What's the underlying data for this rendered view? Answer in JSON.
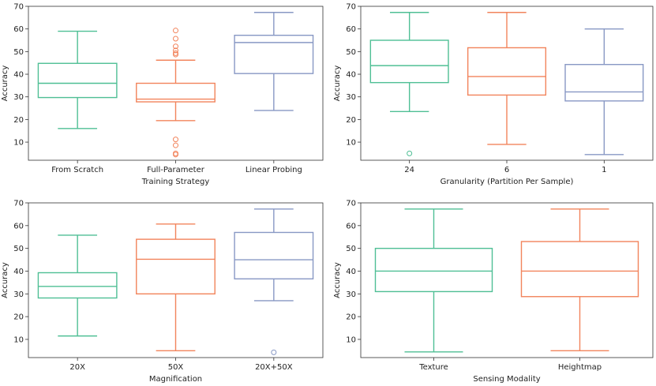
{
  "colors": {
    "series1": "#4fbf95",
    "series2": "#f2845c",
    "series3": "#8898c4"
  },
  "chart_data": [
    {
      "type": "box",
      "xlabel": "Training Strategy",
      "ylabel": "Accuracy",
      "ylim": [
        2,
        70
      ],
      "yticks": [
        10,
        20,
        30,
        40,
        50,
        60,
        70
      ],
      "boxes": [
        {
          "label": "From Scratch",
          "whislo": 16,
          "q1": 29.7,
          "med": 36,
          "q3": 44.8,
          "whishi": 59,
          "fliers": []
        },
        {
          "label": "Full-Parameter",
          "whislo": 19.5,
          "q1": 27.8,
          "med": 29,
          "q3": 36,
          "whishi": 46.2,
          "fliers": [
            59.3,
            55.7,
            52.3,
            50.5,
            49.3,
            48.7,
            11.2,
            8.6,
            5,
            4.5
          ]
        },
        {
          "label": "Linear Probing",
          "whislo": 24,
          "q1": 40.3,
          "med": 54,
          "q3": 57.2,
          "whishi": 67.3,
          "fliers": []
        }
      ]
    },
    {
      "type": "box",
      "xlabel": "Granularity (Partition Per Sample)",
      "ylabel": "Accuracy",
      "ylim": [
        2,
        70
      ],
      "yticks": [
        10,
        20,
        30,
        40,
        50,
        60,
        70
      ],
      "boxes": [
        {
          "label": "24",
          "whislo": 23.5,
          "q1": 36.3,
          "med": 43.8,
          "q3": 55,
          "whishi": 67.3,
          "fliers": [
            5
          ]
        },
        {
          "label": "6",
          "whislo": 9,
          "q1": 30.8,
          "med": 39,
          "q3": 51.7,
          "whishi": 67.3,
          "fliers": []
        },
        {
          "label": "1",
          "whislo": 4.5,
          "q1": 28.2,
          "med": 32.2,
          "q3": 44.3,
          "whishi": 60,
          "fliers": []
        }
      ]
    },
    {
      "type": "box",
      "xlabel": "Magnification",
      "ylabel": "Accuracy",
      "ylim": [
        2,
        70
      ],
      "yticks": [
        10,
        20,
        30,
        40,
        50,
        60,
        70
      ],
      "boxes": [
        {
          "label": "20X",
          "whislo": 11.5,
          "q1": 28.2,
          "med": 33.3,
          "q3": 39.3,
          "whishi": 55.8,
          "fliers": []
        },
        {
          "label": "50X",
          "whislo": 5,
          "q1": 30,
          "med": 45.2,
          "q3": 54,
          "whishi": 60.7,
          "fliers": []
        },
        {
          "label": "20X+50X",
          "whislo": 27,
          "q1": 36.6,
          "med": 45,
          "q3": 57,
          "whishi": 67.3,
          "fliers": [
            4.3
          ]
        }
      ]
    },
    {
      "type": "box",
      "xlabel": "Sensing Modality",
      "ylabel": "Accuracy",
      "ylim": [
        2,
        70
      ],
      "yticks": [
        10,
        20,
        30,
        40,
        50,
        60,
        70
      ],
      "boxes": [
        {
          "label": "Texture",
          "whislo": 4.5,
          "q1": 31,
          "med": 40,
          "q3": 50,
          "whishi": 67.3,
          "fliers": []
        },
        {
          "label": "Heightmap",
          "whislo": 5,
          "q1": 28.8,
          "med": 40,
          "q3": 53,
          "whishi": 67.3,
          "fliers": []
        }
      ]
    }
  ]
}
